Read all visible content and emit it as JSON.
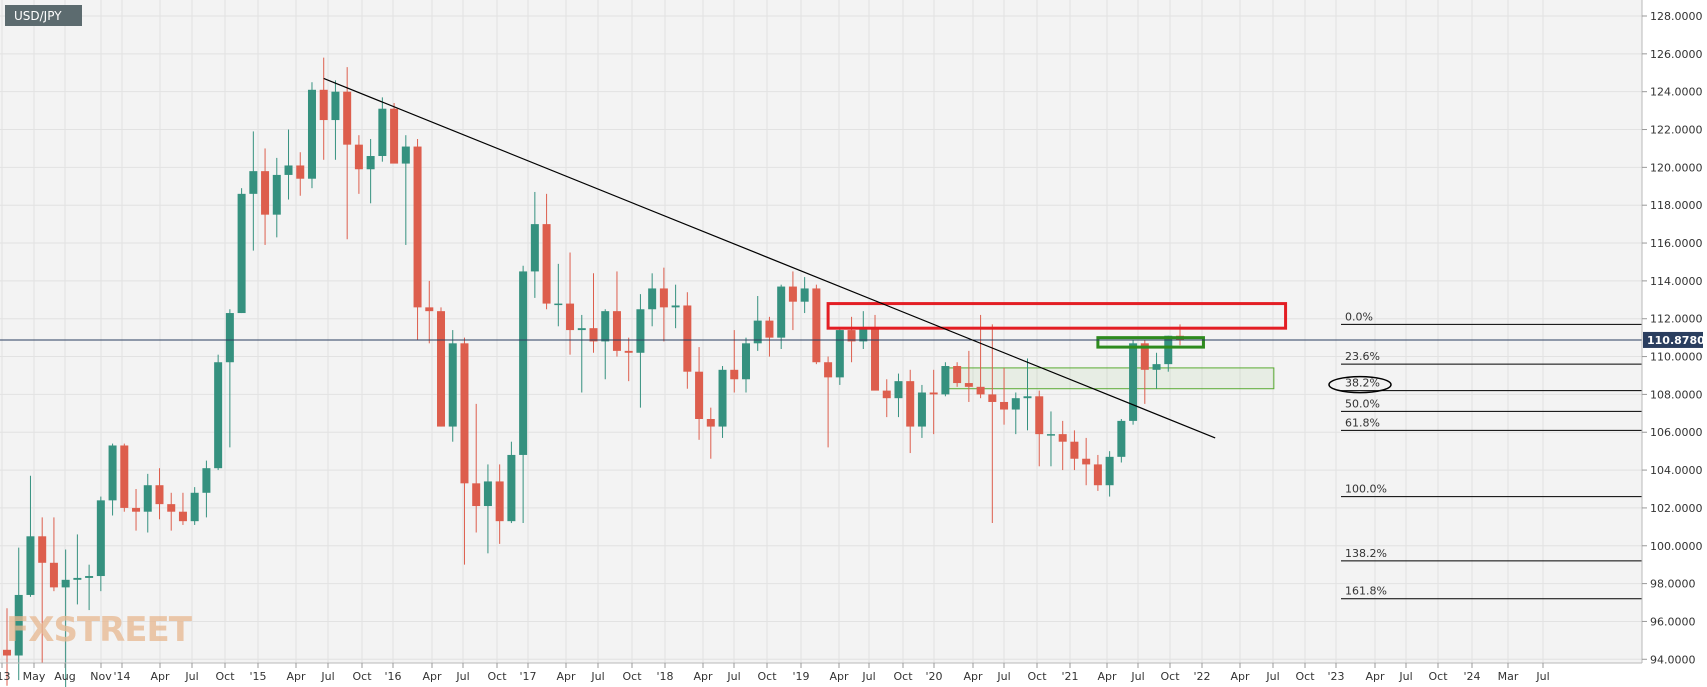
{
  "chart_data": {
    "type": "candlestick",
    "symbol": "USD/JPY",
    "watermark": "FXSTREET",
    "current_price": "110.8780",
    "ylim": [
      93.8,
      128.9
    ],
    "y_ticks": [
      "94.0000",
      "96.0000",
      "98.0000",
      "100.0000",
      "102.0000",
      "104.0000",
      "106.0000",
      "108.0000",
      "110.0000",
      "112.0000",
      "114.0000",
      "116.0000",
      "118.0000",
      "120.0000",
      "122.0000",
      "124.0000",
      "126.0000",
      "128.0000"
    ],
    "x_labels": [
      "'13",
      "May",
      "Aug",
      "Nov",
      "'14",
      "Apr",
      "Jul",
      "Oct",
      "'15",
      "Apr",
      "Jul",
      "Oct",
      "'16",
      "Apr",
      "Jul",
      "Oct",
      "'17",
      "Apr",
      "Jul",
      "Oct",
      "'18",
      "Apr",
      "Jul",
      "Oct",
      "'19",
      "Apr",
      "Jul",
      "Oct",
      "'20",
      "Apr",
      "Jul",
      "Oct",
      "'21",
      "Apr",
      "Jul",
      "Oct",
      "'22",
      "Apr",
      "Jul",
      "Oct",
      "'23",
      "Apr",
      "Jul",
      "Oct",
      "'24",
      "Mar",
      "Jul"
    ],
    "fibonacci": [
      {
        "label": "0.0%",
        "value": 111.7
      },
      {
        "label": "23.6%",
        "value": 109.6
      },
      {
        "label": "38.2%",
        "value": 108.2
      },
      {
        "label": "50.0%",
        "value": 107.1
      },
      {
        "label": "61.8%",
        "value": 106.1
      },
      {
        "label": "100.0%",
        "value": 102.6
      },
      {
        "label": "138.2%",
        "value": 99.2
      },
      {
        "label": "161.8%",
        "value": 97.2
      }
    ],
    "trendline": {
      "start": {
        "date": "2015-06",
        "value": 124.7
      },
      "end": {
        "date": "2021-10",
        "value": 105.7
      }
    },
    "zones": [
      {
        "name": "resistance",
        "from": "2019-01",
        "to": "2022-04",
        "low": 111.5,
        "high": 112.8,
        "color": "#e31e24"
      },
      {
        "name": "support",
        "from": "2019-11",
        "to": "2022-03",
        "low": 108.3,
        "high": 109.4,
        "color": "#5aaa32"
      },
      {
        "name": "recent-range",
        "from": "2020-12",
        "to": "2021-09",
        "low": 110.5,
        "high": 111.0,
        "color": "#2e8b1e"
      }
    ],
    "candles": [
      {
        "d": "2013-03",
        "o": 94.5,
        "h": 96.7,
        "l": 92.6,
        "c": 94.2
      },
      {
        "d": "2013-04",
        "o": 94.2,
        "h": 99.9,
        "l": 92.9,
        "c": 97.4
      },
      {
        "d": "2013-05",
        "o": 97.4,
        "h": 103.7,
        "l": 97.3,
        "c": 100.5
      },
      {
        "d": "2013-06",
        "o": 100.5,
        "h": 101.5,
        "l": 93.8,
        "c": 99.1
      },
      {
        "d": "2013-07",
        "o": 99.1,
        "h": 101.5,
        "l": 97.6,
        "c": 97.8
      },
      {
        "d": "2013-08",
        "o": 97.8,
        "h": 99.8,
        "l": 92.4,
        "c": 98.2
      },
      {
        "d": "2013-09",
        "o": 98.2,
        "h": 100.6,
        "l": 96.9,
        "c": 98.3
      },
      {
        "d": "2013-10",
        "o": 98.3,
        "h": 99.0,
        "l": 96.6,
        "c": 98.4
      },
      {
        "d": "2013-11",
        "o": 98.4,
        "h": 102.6,
        "l": 97.6,
        "c": 102.4
      },
      {
        "d": "2013-12",
        "o": 102.4,
        "h": 105.4,
        "l": 101.6,
        "c": 105.3
      },
      {
        "d": "2014-01",
        "o": 105.3,
        "h": 105.4,
        "l": 101.8,
        "c": 102.0
      },
      {
        "d": "2014-02",
        "o": 102.0,
        "h": 103.0,
        "l": 100.8,
        "c": 101.8
      },
      {
        "d": "2014-03",
        "o": 101.8,
        "h": 103.8,
        "l": 100.7,
        "c": 103.2
      },
      {
        "d": "2014-04",
        "o": 103.2,
        "h": 104.1,
        "l": 101.4,
        "c": 102.2
      },
      {
        "d": "2014-05",
        "o": 102.2,
        "h": 102.8,
        "l": 100.8,
        "c": 101.8
      },
      {
        "d": "2014-06",
        "o": 101.8,
        "h": 102.8,
        "l": 101.1,
        "c": 101.3
      },
      {
        "d": "2014-07",
        "o": 101.3,
        "h": 103.1,
        "l": 101.1,
        "c": 102.8
      },
      {
        "d": "2014-08",
        "o": 102.8,
        "h": 104.5,
        "l": 101.5,
        "c": 104.1
      },
      {
        "d": "2014-09",
        "o": 104.1,
        "h": 110.1,
        "l": 104.0,
        "c": 109.7
      },
      {
        "d": "2014-10",
        "o": 109.7,
        "h": 112.5,
        "l": 105.2,
        "c": 112.3
      },
      {
        "d": "2014-11",
        "o": 112.3,
        "h": 118.9,
        "l": 112.3,
        "c": 118.6
      },
      {
        "d": "2014-12",
        "o": 118.6,
        "h": 121.9,
        "l": 115.6,
        "c": 119.8
      },
      {
        "d": "2015-01",
        "o": 119.8,
        "h": 121.0,
        "l": 115.9,
        "c": 117.5
      },
      {
        "d": "2015-02",
        "o": 117.5,
        "h": 120.5,
        "l": 116.3,
        "c": 119.6
      },
      {
        "d": "2015-03",
        "o": 119.6,
        "h": 122.0,
        "l": 118.3,
        "c": 120.1
      },
      {
        "d": "2015-04",
        "o": 120.1,
        "h": 120.8,
        "l": 118.5,
        "c": 119.4
      },
      {
        "d": "2015-05",
        "o": 119.4,
        "h": 124.5,
        "l": 118.9,
        "c": 124.1
      },
      {
        "d": "2015-06",
        "o": 124.1,
        "h": 125.8,
        "l": 120.4,
        "c": 122.5
      },
      {
        "d": "2015-07",
        "o": 122.5,
        "h": 124.6,
        "l": 120.4,
        "c": 124.0
      },
      {
        "d": "2015-08",
        "o": 124.0,
        "h": 125.3,
        "l": 116.2,
        "c": 121.2
      },
      {
        "d": "2015-09",
        "o": 121.2,
        "h": 121.7,
        "l": 118.6,
        "c": 119.9
      },
      {
        "d": "2015-10",
        "o": 119.9,
        "h": 121.5,
        "l": 118.1,
        "c": 120.6
      },
      {
        "d": "2015-11",
        "o": 120.6,
        "h": 123.7,
        "l": 120.3,
        "c": 123.1
      },
      {
        "d": "2015-12",
        "o": 123.1,
        "h": 123.4,
        "l": 120.3,
        "c": 120.2
      },
      {
        "d": "2016-01",
        "o": 120.2,
        "h": 121.7,
        "l": 115.9,
        "c": 121.1
      },
      {
        "d": "2016-02",
        "o": 121.1,
        "h": 121.5,
        "l": 110.9,
        "c": 112.6
      },
      {
        "d": "2016-03",
        "o": 112.6,
        "h": 114.0,
        "l": 110.7,
        "c": 112.4
      },
      {
        "d": "2016-04",
        "o": 112.4,
        "h": 112.6,
        "l": 106.3,
        "c": 106.3
      },
      {
        "d": "2016-05",
        "o": 106.3,
        "h": 111.4,
        "l": 105.5,
        "c": 110.7
      },
      {
        "d": "2016-06",
        "o": 110.7,
        "h": 111.0,
        "l": 99.0,
        "c": 103.3
      },
      {
        "d": "2016-07",
        "o": 103.3,
        "h": 107.5,
        "l": 100.7,
        "c": 102.1
      },
      {
        "d": "2016-08",
        "o": 102.1,
        "h": 104.3,
        "l": 99.6,
        "c": 103.4
      },
      {
        "d": "2016-09",
        "o": 103.4,
        "h": 104.3,
        "l": 100.1,
        "c": 101.3
      },
      {
        "d": "2016-10",
        "o": 101.3,
        "h": 105.5,
        "l": 101.2,
        "c": 104.8
      },
      {
        "d": "2016-11",
        "o": 104.8,
        "h": 114.8,
        "l": 101.2,
        "c": 114.5
      },
      {
        "d": "2016-12",
        "o": 114.5,
        "h": 118.7,
        "l": 113.1,
        "c": 117.0
      },
      {
        "d": "2017-01",
        "o": 117.0,
        "h": 118.6,
        "l": 112.5,
        "c": 112.8
      },
      {
        "d": "2017-02",
        "o": 112.8,
        "h": 114.9,
        "l": 111.6,
        "c": 112.8
      },
      {
        "d": "2017-03",
        "o": 112.8,
        "h": 115.5,
        "l": 110.1,
        "c": 111.4
      },
      {
        "d": "2017-04",
        "o": 111.4,
        "h": 112.2,
        "l": 108.1,
        "c": 111.5
      },
      {
        "d": "2017-05",
        "o": 111.5,
        "h": 114.4,
        "l": 110.2,
        "c": 110.8
      },
      {
        "d": "2017-06",
        "o": 110.8,
        "h": 112.5,
        "l": 108.8,
        "c": 112.4
      },
      {
        "d": "2017-07",
        "o": 112.4,
        "h": 114.5,
        "l": 110.0,
        "c": 110.3
      },
      {
        "d": "2017-08",
        "o": 110.3,
        "h": 111.0,
        "l": 108.7,
        "c": 110.2
      },
      {
        "d": "2017-09",
        "o": 110.2,
        "h": 113.3,
        "l": 107.3,
        "c": 112.5
      },
      {
        "d": "2017-10",
        "o": 112.5,
        "h": 114.4,
        "l": 111.6,
        "c": 113.6
      },
      {
        "d": "2017-11",
        "o": 113.6,
        "h": 114.7,
        "l": 110.8,
        "c": 112.6
      },
      {
        "d": "2017-12",
        "o": 112.6,
        "h": 113.8,
        "l": 111.5,
        "c": 112.7
      },
      {
        "d": "2018-01",
        "o": 112.7,
        "h": 113.4,
        "l": 108.3,
        "c": 109.2
      },
      {
        "d": "2018-02",
        "o": 109.2,
        "h": 110.5,
        "l": 105.6,
        "c": 106.7
      },
      {
        "d": "2018-03",
        "o": 106.7,
        "h": 107.3,
        "l": 104.6,
        "c": 106.3
      },
      {
        "d": "2018-04",
        "o": 106.3,
        "h": 109.5,
        "l": 105.7,
        "c": 109.3
      },
      {
        "d": "2018-05",
        "o": 109.3,
        "h": 111.4,
        "l": 108.1,
        "c": 108.8
      },
      {
        "d": "2018-06",
        "o": 108.8,
        "h": 111.0,
        "l": 108.1,
        "c": 110.7
      },
      {
        "d": "2018-07",
        "o": 110.7,
        "h": 113.2,
        "l": 110.3,
        "c": 111.9
      },
      {
        "d": "2018-08",
        "o": 111.9,
        "h": 112.1,
        "l": 110.0,
        "c": 111.0
      },
      {
        "d": "2018-09",
        "o": 111.0,
        "h": 113.8,
        "l": 110.4,
        "c": 113.7
      },
      {
        "d": "2018-10",
        "o": 113.7,
        "h": 114.5,
        "l": 111.4,
        "c": 112.9
      },
      {
        "d": "2018-11",
        "o": 112.9,
        "h": 114.2,
        "l": 112.3,
        "c": 113.6
      },
      {
        "d": "2018-12",
        "o": 113.6,
        "h": 113.8,
        "l": 109.6,
        "c": 109.7
      },
      {
        "d": "2019-01",
        "o": 109.7,
        "h": 110.0,
        "l": 105.2,
        "c": 108.9
      },
      {
        "d": "2019-02",
        "o": 108.9,
        "h": 111.5,
        "l": 108.5,
        "c": 111.4
      },
      {
        "d": "2019-03",
        "o": 111.4,
        "h": 112.1,
        "l": 109.7,
        "c": 110.8
      },
      {
        "d": "2019-04",
        "o": 110.8,
        "h": 112.4,
        "l": 110.4,
        "c": 111.5
      },
      {
        "d": "2019-05",
        "o": 111.5,
        "h": 112.2,
        "l": 108.3,
        "c": 108.2
      },
      {
        "d": "2019-06",
        "o": 108.2,
        "h": 108.8,
        "l": 106.8,
        "c": 107.8
      },
      {
        "d": "2019-07",
        "o": 107.8,
        "h": 109.1,
        "l": 106.8,
        "c": 108.7
      },
      {
        "d": "2019-08",
        "o": 108.7,
        "h": 109.3,
        "l": 104.9,
        "c": 106.3
      },
      {
        "d": "2019-09",
        "o": 106.3,
        "h": 108.5,
        "l": 105.7,
        "c": 108.1
      },
      {
        "d": "2019-10",
        "o": 108.1,
        "h": 109.3,
        "l": 105.9,
        "c": 108.0
      },
      {
        "d": "2019-11",
        "o": 108.0,
        "h": 109.7,
        "l": 107.9,
        "c": 109.5
      },
      {
        "d": "2019-12",
        "o": 109.5,
        "h": 109.7,
        "l": 108.4,
        "c": 108.6
      },
      {
        "d": "2020-01",
        "o": 108.6,
        "h": 110.3,
        "l": 107.6,
        "c": 108.4
      },
      {
        "d": "2020-02",
        "o": 108.4,
        "h": 112.2,
        "l": 107.8,
        "c": 108.0
      },
      {
        "d": "2020-03",
        "o": 108.0,
        "h": 111.7,
        "l": 101.2,
        "c": 107.6
      },
      {
        "d": "2020-04",
        "o": 107.6,
        "h": 109.4,
        "l": 106.4,
        "c": 107.2
      },
      {
        "d": "2020-05",
        "o": 107.2,
        "h": 108.1,
        "l": 105.9,
        "c": 107.8
      },
      {
        "d": "2020-06",
        "o": 107.8,
        "h": 109.9,
        "l": 106.1,
        "c": 107.9
      },
      {
        "d": "2020-07",
        "o": 107.9,
        "h": 108.2,
        "l": 104.2,
        "c": 105.9
      },
      {
        "d": "2020-08",
        "o": 105.9,
        "h": 107.1,
        "l": 104.2,
        "c": 105.9
      },
      {
        "d": "2020-09",
        "o": 105.9,
        "h": 106.6,
        "l": 104.0,
        "c": 105.5
      },
      {
        "d": "2020-10",
        "o": 105.5,
        "h": 106.1,
        "l": 104.0,
        "c": 104.6
      },
      {
        "d": "2020-11",
        "o": 104.6,
        "h": 105.7,
        "l": 103.2,
        "c": 104.3
      },
      {
        "d": "2020-12",
        "o": 104.3,
        "h": 104.8,
        "l": 102.9,
        "c": 103.2
      },
      {
        "d": "2021-01",
        "o": 103.2,
        "h": 105.0,
        "l": 102.6,
        "c": 104.7
      },
      {
        "d": "2021-02",
        "o": 104.7,
        "h": 106.7,
        "l": 104.4,
        "c": 106.6
      },
      {
        "d": "2021-03",
        "o": 106.6,
        "h": 110.9,
        "l": 106.4,
        "c": 110.7
      },
      {
        "d": "2021-04",
        "o": 110.7,
        "h": 110.9,
        "l": 107.5,
        "c": 109.3
      },
      {
        "d": "2021-05",
        "o": 109.3,
        "h": 110.2,
        "l": 108.3,
        "c": 109.6
      },
      {
        "d": "2021-06",
        "o": 109.6,
        "h": 111.1,
        "l": 109.2,
        "c": 111.1
      },
      {
        "d": "2021-07",
        "o": 111.1,
        "h": 111.7,
        "l": 110.6,
        "c": 110.9
      }
    ]
  }
}
